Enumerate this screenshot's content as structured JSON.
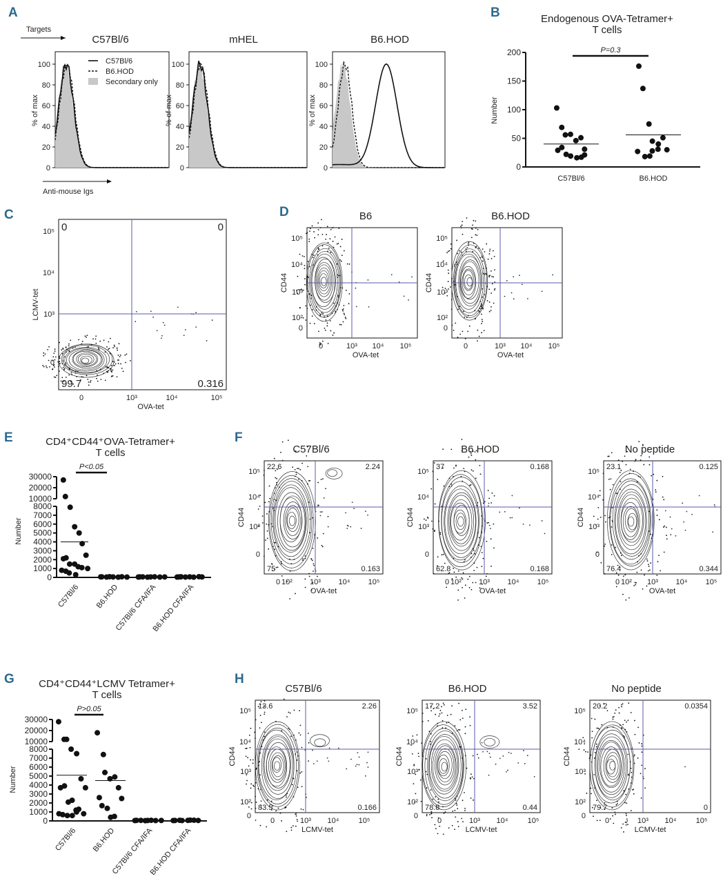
{
  "panel_labels": [
    "A",
    "B",
    "C",
    "D",
    "E",
    "F",
    "G",
    "H"
  ],
  "chart_data": [
    {
      "id": "A",
      "type": "histogram",
      "targets_label": "Targets",
      "xlabel": "Anti-mouse Igs",
      "ylabel": "% of max",
      "yticks": [
        "0",
        "20",
        "40",
        "60",
        "80",
        "100"
      ],
      "panels": [
        "C57Bl/6",
        "mHEL",
        "B6.HOD"
      ],
      "legend": [
        "C57Bl/6",
        "B6.HOD",
        "Secondary only"
      ],
      "legend_placement": "top-right"
    },
    {
      "id": "B",
      "type": "scatter",
      "title": [
        "Endogenous OVA-Tetramer+",
        "T cells"
      ],
      "ylabel": "Number",
      "ylim": [
        0,
        200
      ],
      "yticks": [
        0,
        50,
        100,
        150,
        200
      ],
      "categories": [
        "C57Bl/6",
        "B6.HOD"
      ],
      "series": [
        {
          "name": "C57Bl/6",
          "values": [
            103,
            69,
            56,
            57,
            46,
            51,
            31,
            29,
            34,
            22,
            19,
            16,
            17,
            21
          ],
          "mean": 40
        },
        {
          "name": "B6.HOD",
          "values": [
            176,
            137,
            75,
            45,
            40,
            51,
            30,
            27,
            18,
            19,
            28,
            31
          ],
          "mean": 56
        }
      ],
      "annotation": "P=0.3"
    },
    {
      "id": "C",
      "type": "contour",
      "xlabel": "OVA-tet",
      "ylabel": "LCMV-tet",
      "xticks": [
        "0",
        "10³",
        "10⁴",
        "10⁵"
      ],
      "yticks": [
        "0",
        "10³",
        "10⁴",
        "10⁵"
      ],
      "quadrants": {
        "ul": "0",
        "ur": "0",
        "ll": "99.7",
        "lr": "0.316"
      }
    },
    {
      "id": "D",
      "type": "contour",
      "xlabel": "OVA-tet",
      "ylabel": "CD44",
      "xticks": [
        "0",
        "10³",
        "10⁴",
        "10⁵"
      ],
      "yticks": [
        "0",
        "10²",
        "10³",
        "10⁴",
        "10⁵"
      ],
      "panels": [
        "B6",
        "B6.HOD"
      ]
    },
    {
      "id": "E",
      "type": "scatter",
      "title": [
        "CD4⁺CD44⁺OVA-Tetramer+",
        "T cells"
      ],
      "ylabel": "Number",
      "yticks": [
        0,
        1000,
        2000,
        3000,
        4000,
        5000,
        6000,
        7000,
        8000,
        10000,
        20000,
        30000
      ],
      "categories": [
        "C57Bl/6",
        "B6.HOD",
        "C57Bl/6 CFA/IFA",
        "B6.HOD CFA/IFA"
      ],
      "series": [
        {
          "name": "C57Bl/6",
          "values": [
            27000,
            12000,
            7900,
            5700,
            5000,
            3800,
            2500,
            2100,
            2200,
            1500,
            1500,
            1200,
            1100,
            1000,
            800,
            700,
            500,
            300
          ],
          "mean": 4000
        },
        {
          "name": "B6.HOD",
          "values": [
            60,
            40,
            80,
            50,
            30,
            70,
            40,
            60
          ],
          "mean": 50
        },
        {
          "name": "C57Bl/6 CFA/IFA",
          "values": [
            40,
            60,
            30,
            50,
            70,
            40,
            50,
            60
          ],
          "mean": 50
        },
        {
          "name": "B6.HOD CFA/IFA",
          "values": [
            50,
            70,
            40,
            60,
            30,
            80,
            50,
            40,
            60
          ],
          "mean": 50
        }
      ],
      "annotation": "P<0.05"
    },
    {
      "id": "F",
      "type": "contour",
      "xlabel": "OVA-tet",
      "ylabel": "CD44",
      "xticks": [
        "0",
        "10²",
        "10³",
        "10⁴",
        "10⁵"
      ],
      "yticks": [
        "0",
        "10³",
        "10⁴",
        "10⁵"
      ],
      "panels": [
        {
          "title": "C57Bl/6",
          "ul": "22.6",
          "ur": "2.24",
          "ll": "75",
          "lr": "0.163"
        },
        {
          "title": "B6.HOD",
          "ul": "37",
          "ur": "0.168",
          "ll": "62.8",
          "lr": "0.168"
        },
        {
          "title": "No peptide",
          "ul": "23.1",
          "ur": "0.125",
          "ll": "76.4",
          "lr": "0.344"
        }
      ]
    },
    {
      "id": "G",
      "type": "scatter",
      "title": [
        "CD4⁺CD44⁺LCMV Tetramer+",
        "T cells"
      ],
      "ylabel": "Number",
      "yticks": [
        0,
        1000,
        2000,
        3000,
        4000,
        5000,
        6000,
        7000,
        8000,
        10000,
        20000,
        30000
      ],
      "categories": [
        "C57Bl/6",
        "B6.HOD",
        "C57Bl/6 CFA/IFA",
        "B6.HOD CFA/IFA"
      ],
      "series": [
        {
          "name": "C57Bl/6",
          "values": [
            28000,
            12000,
            12000,
            8000,
            7500,
            4700,
            3700,
            3700,
            3900,
            2100,
            2300,
            1200,
            1300,
            800,
            800,
            700,
            600,
            600,
            1000
          ],
          "mean": 5100
        },
        {
          "name": "B6.HOD",
          "values": [
            18000,
            7400,
            5400,
            4700,
            4900,
            3700,
            2500,
            2600,
            1700,
            1400,
            400,
            500
          ],
          "mean": 4500
        },
        {
          "name": "C57Bl/6 CFA/IFA",
          "values": [
            40,
            60,
            30,
            50,
            70,
            40,
            50,
            60
          ],
          "mean": 50
        },
        {
          "name": "B6.HOD CFA/IFA",
          "values": [
            50,
            70,
            40,
            60,
            90,
            80,
            50,
            40
          ],
          "mean": 50
        }
      ],
      "annotation": "P>0.05"
    },
    {
      "id": "H",
      "type": "contour",
      "xlabel": "LCMV-tet",
      "ylabel": "CD44",
      "xticks": [
        "0",
        "10³",
        "10⁴",
        "10⁵"
      ],
      "yticks": [
        "0",
        "10²",
        "10³",
        "10⁴",
        "10⁵"
      ],
      "panels": [
        {
          "title": "C57Bl/6",
          "ul": "13.6",
          "ur": "2.26",
          "ll": "83.5",
          "lr": "0.166"
        },
        {
          "title": "B6.HOD",
          "ul": "17.2",
          "ur": "3.52",
          "ll": "78.8",
          "lr": "0.44"
        },
        {
          "title": "No peptide",
          "ul": "20.2",
          "ur": "0.0354",
          "ll": "79.7",
          "lr": "0"
        }
      ]
    }
  ],
  "colors": {
    "panel_label": "#2b6a8e",
    "quadrant": "#5a5aa8",
    "quadrant_text": "#3a4aa0",
    "fill": "#c8c8c8"
  }
}
